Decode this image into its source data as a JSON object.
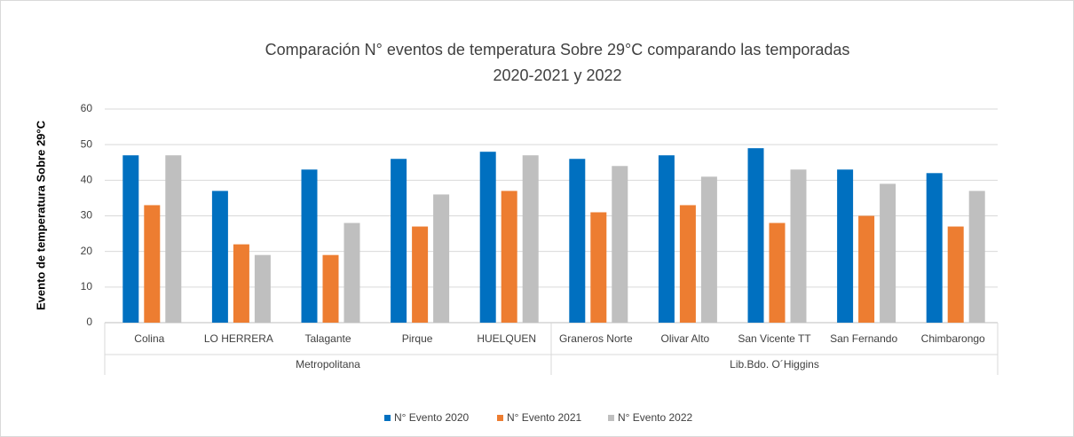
{
  "chart_data": {
    "type": "bar",
    "title": [
      "Comparación N° eventos de temperatura Sobre 29°C  comparando las temporadas",
      "2020-2021 y 2022"
    ],
    "y_label": "Evento de temperatura Sobre 29°C",
    "categories": [
      "Colina",
      "LO HERRERA",
      "Talagante",
      "Pirque",
      "HUELQUEN",
      "Graneros Norte",
      "Olivar Alto",
      "San Vicente TT",
      "San Fernando",
      "Chimbarongo"
    ],
    "groups": [
      {
        "name": "Metropolitana",
        "span": 5
      },
      {
        "name": "Lib.Bdo. O´Higgins",
        "span": 5
      }
    ],
    "series": [
      {
        "name": "N° Evento 2020",
        "color": "#0070c0",
        "values": [
          47,
          37,
          43,
          46,
          48,
          46,
          47,
          49,
          43,
          42
        ]
      },
      {
        "name": "N° Evento 2021",
        "color": "#ed7d31",
        "values": [
          33,
          22,
          19,
          27,
          37,
          31,
          33,
          28,
          30,
          27
        ]
      },
      {
        "name": "N° Evento 2022",
        "color": "#bfbfbf",
        "values": [
          47,
          19,
          28,
          36,
          47,
          44,
          41,
          43,
          39,
          37
        ]
      }
    ],
    "ylim": [
      0,
      60
    ],
    "yticks": [
      0,
      10,
      20,
      30,
      40,
      50,
      60
    ],
    "grid": true,
    "legend": "bottom"
  }
}
